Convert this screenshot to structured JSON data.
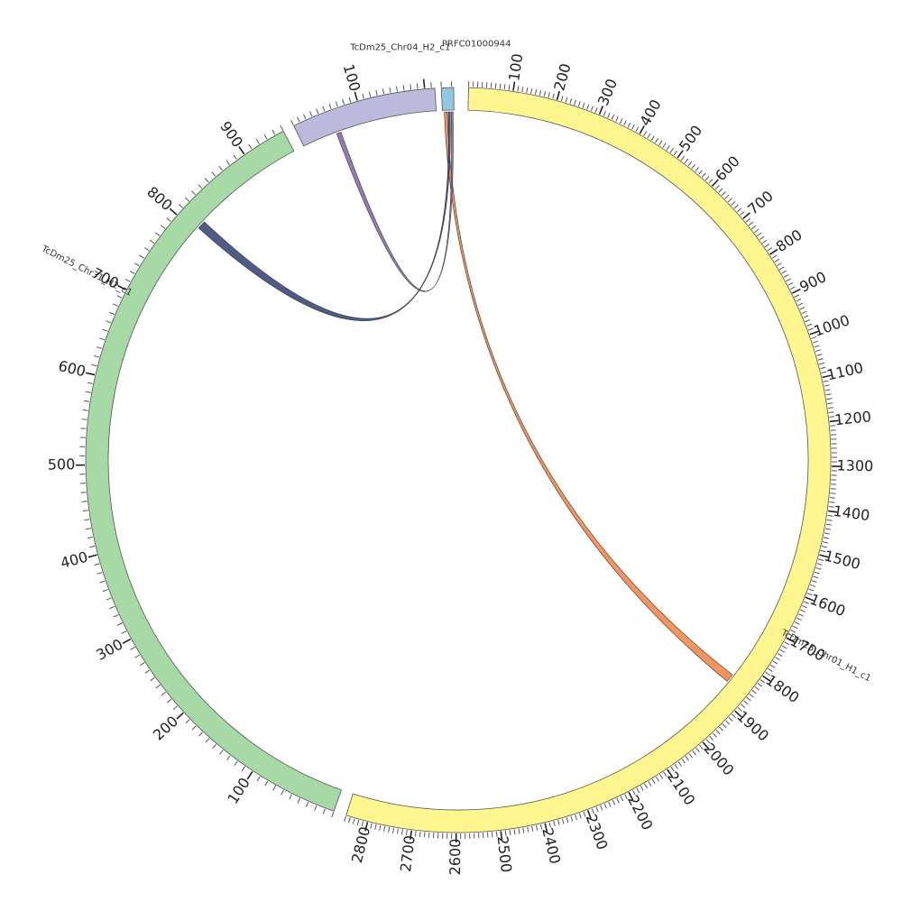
{
  "diagram": {
    "type": "circos",
    "segments": [
      {
        "id": "chr01",
        "name": "TcDm25_Chr01_H1_c1",
        "display_name": "TcDm25_Chr01_H1_c1",
        "length": 2850,
        "color": "#fff68f",
        "labels": [
          "100",
          "200",
          "300",
          "400",
          "500",
          "600",
          "700",
          "800",
          "900",
          "1000",
          "1100",
          "1200",
          "1300",
          "1400",
          "1500",
          "1600",
          "1700",
          "1800",
          "1900",
          "2000",
          "2100",
          "2200",
          "2300",
          "2400",
          "2500",
          "2600",
          "2700",
          "2800"
        ]
      },
      {
        "id": "chr31",
        "name": "TcDm25_Chr31_H2_c1",
        "display_name": "TcDm25_Chr31_H2_c1",
        "length": 950,
        "color": "#a6d9a6",
        "labels": [
          "100",
          "200",
          "300",
          "400",
          "500",
          "600",
          "700",
          "800",
          "900"
        ]
      },
      {
        "id": "chr04",
        "name": "TcDm25_Chr04_H2_c1",
        "display_name": "TcDm25_Chr04_H2_c1",
        "length": 215,
        "color": "#bcbadc",
        "labels": [
          "100"
        ]
      },
      {
        "id": "prfc",
        "name": "PRFC01000944",
        "display_name": "PRFC01000944",
        "length": 12,
        "color": "#91c8e0",
        "labels": []
      }
    ],
    "links": [
      {
        "from": {
          "segment": "prfc",
          "start": 2,
          "end": 5
        },
        "to": {
          "segment": "chr01",
          "start": 1840,
          "end": 1860
        },
        "color": "#f4894b"
      },
      {
        "from": {
          "segment": "prfc",
          "start": 6,
          "end": 8
        },
        "to": {
          "segment": "chr31",
          "start": 805,
          "end": 815
        },
        "color": "#3b4a7a"
      },
      {
        "from": {
          "segment": "prfc",
          "start": 9,
          "end": 11
        },
        "to": {
          "segment": "chr04",
          "start": 55,
          "end": 62
        },
        "color": "#8a6aa8"
      }
    ]
  }
}
